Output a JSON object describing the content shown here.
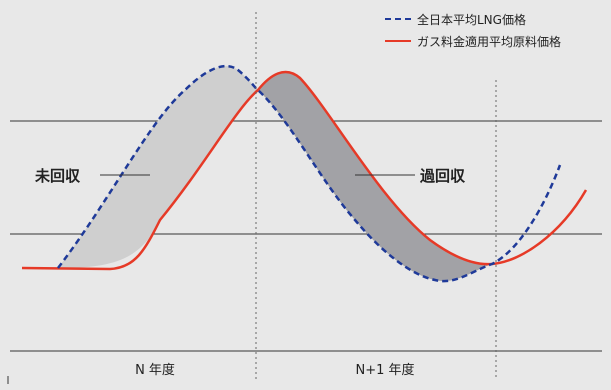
{
  "legend": {
    "items": [
      {
        "label": "全日本平均LNG価格",
        "style": "dashed",
        "color": "#1f3a99"
      },
      {
        "label": "ガス料金適用平均原料価格",
        "style": "solid",
        "color": "#e63a27"
      }
    ]
  },
  "annotations": {
    "under_recovery": "未回収",
    "over_recovery": "過回収"
  },
  "periods": {
    "year_n": "N 年度",
    "year_n1": "N+1 年度"
  },
  "colors": {
    "background": "#e8e8e8",
    "under_fill": "#cfcfcf",
    "over_fill": "#a2a2a6",
    "lng_line": "#1f3a99",
    "tariff_line": "#e63a27"
  }
}
